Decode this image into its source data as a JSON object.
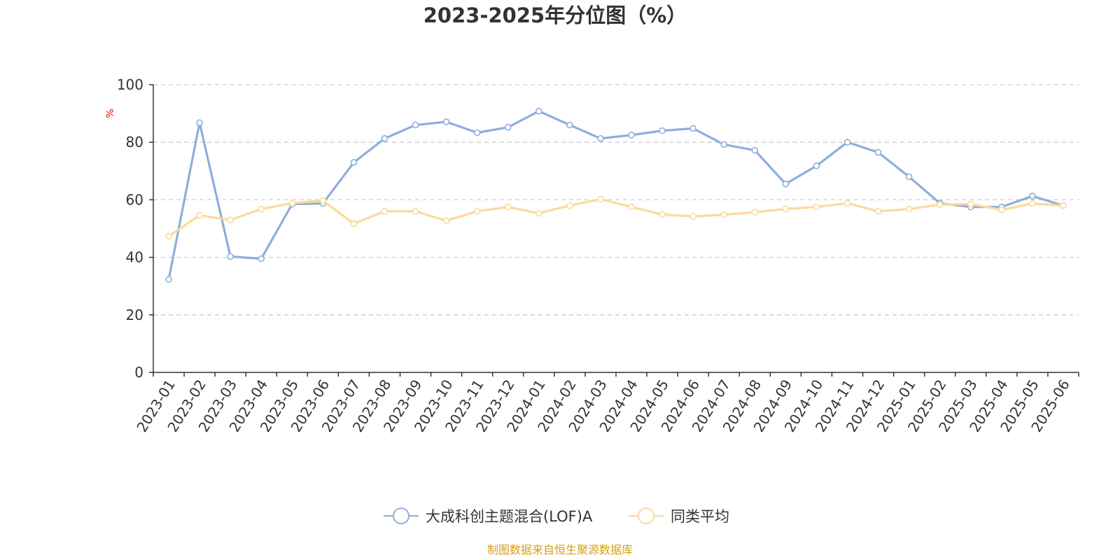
{
  "chart_data": {
    "type": "line",
    "title": "2023-2025年分位图（%）",
    "ylabel": "%",
    "xlabel": "",
    "ylim": [
      0,
      100
    ],
    "yticks": [
      0,
      20,
      40,
      60,
      80,
      100
    ],
    "grid": true,
    "legend_position": "bottom",
    "categories": [
      "2023-01",
      "2023-02",
      "2023-03",
      "2023-04",
      "2023-05",
      "2023-06",
      "2023-07",
      "2023-08",
      "2023-09",
      "2023-10",
      "2023-11",
      "2023-12",
      "2024-01",
      "2024-02",
      "2024-03",
      "2024-04",
      "2024-05",
      "2024-06",
      "2024-07",
      "2024-08",
      "2024-09",
      "2024-10",
      "2024-11",
      "2024-12",
      "2025-01",
      "2025-02",
      "2025-03",
      "2025-04",
      "2025-05",
      "2025-06"
    ],
    "series": [
      {
        "name": "大成科创主题混合(LOF)A",
        "color": "#8eaedb",
        "values": [
          32.3,
          86.8,
          40.3,
          39.5,
          58.5,
          58.7,
          73.0,
          81.3,
          86.0,
          87.1,
          83.3,
          85.2,
          90.8,
          86.0,
          81.3,
          82.5,
          84.0,
          84.8,
          79.2,
          77.2,
          65.5,
          71.8,
          80.0,
          76.5,
          68.0,
          58.8,
          57.5,
          57.5,
          61.3,
          58.0
        ]
      },
      {
        "name": "同类平均",
        "color": "#fdd99a",
        "values": [
          47.3,
          54.6,
          53.0,
          56.8,
          58.8,
          59.7,
          51.7,
          56.0,
          56.0,
          52.7,
          56.0,
          57.5,
          55.3,
          58.0,
          60.2,
          57.5,
          54.9,
          54.2,
          54.8,
          55.7,
          56.8,
          57.5,
          58.8,
          56.0,
          56.8,
          58.3,
          58.5,
          56.5,
          58.7,
          58.0
        ]
      }
    ]
  },
  "source_text": "制图数据来自恒生聚源数据库",
  "colors": {
    "axis": "#333333",
    "grid": "#cccccc",
    "unit_label": "#ff0000",
    "source_text": "#d4a017"
  }
}
